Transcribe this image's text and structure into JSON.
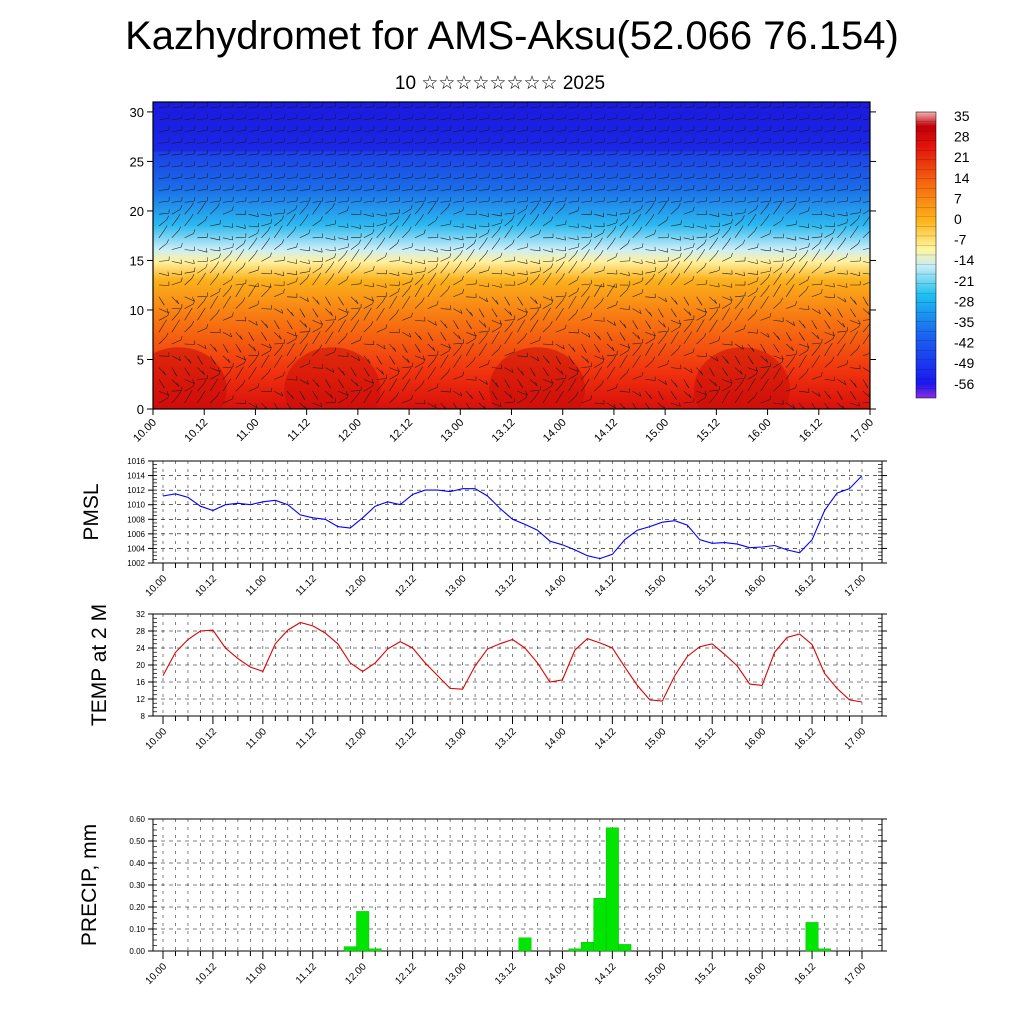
{
  "title": "Kazhydromet for AMS-Aksu(52.066 76.154)",
  "subtitle": "10 ☆☆☆☆☆☆☆☆ 2025",
  "time_ticks": [
    "10.00",
    "10.12",
    "11.00",
    "11.12",
    "12.00",
    "12.12",
    "13.00",
    "13.12",
    "14.00",
    "14.12",
    "15.00",
    "15.12",
    "16.00",
    "16.12",
    "17.00"
  ],
  "chart_data": [
    {
      "type": "heatmap",
      "name": "temperature_cross_section",
      "x_ticks": [
        "10.00",
        "10.12",
        "11.00",
        "11.12",
        "12.00",
        "12.12",
        "13.00",
        "13.12",
        "14.00",
        "14.12",
        "15.00",
        "15.12",
        "16.00",
        "16.12",
        "17.00"
      ],
      "y_ticks": [
        "0",
        "5",
        "10",
        "15",
        "20",
        "25",
        "30"
      ],
      "ylim": [
        0,
        31
      ],
      "colorbar_labels": [
        "35",
        "28",
        "21",
        "14",
        "7",
        "0",
        "-7",
        "-14",
        "-21",
        "-28",
        "-35",
        "-42",
        "-49",
        "-56"
      ],
      "colorbar_range": [
        -63,
        42
      ],
      "colors": [
        "#6a00d8",
        "#1420f0",
        "#0a6cf0",
        "#19c2f0",
        "#a8e6f5",
        "#fff7a0",
        "#fcb01c",
        "#f76d0e",
        "#e8200c",
        "#c4000a",
        "#f2a0a0"
      ],
      "overlay": "wind barbs"
    },
    {
      "type": "line",
      "name": "PMSL",
      "ylabel": "PMSL",
      "ylim": [
        1002,
        1016
      ],
      "y_ticks": [
        "1016",
        "1014",
        "1012",
        "1010",
        "1008",
        "1006",
        "1004",
        "1002"
      ],
      "x_ticks": [
        "10.00",
        "10.12",
        "11.00",
        "11.12",
        "12.00",
        "12.12",
        "13.00",
        "13.12",
        "14.00",
        "14.12",
        "15.00",
        "15.12",
        "16.00",
        "16.12",
        "17.00"
      ],
      "color": "#0000ff",
      "values": [
        1011.2,
        1011.5,
        1011.0,
        1009.8,
        1009.2,
        1010.0,
        1010.2,
        1010.0,
        1010.4,
        1010.6,
        1010.0,
        1008.6,
        1008.2,
        1008.0,
        1007.0,
        1006.8,
        1008.2,
        1009.8,
        1010.4,
        1010.0,
        1011.4,
        1012.0,
        1012.0,
        1011.8,
        1012.2,
        1012.2,
        1011.2,
        1009.5,
        1008.0,
        1007.3,
        1006.5,
        1005.0,
        1004.5,
        1003.8,
        1003.0,
        1002.6,
        1003.2,
        1005.2,
        1006.5,
        1007.0,
        1007.6,
        1007.8,
        1007.2,
        1005.2,
        1004.7,
        1004.8,
        1004.6,
        1004.1,
        1004.2,
        1004.4,
        1003.8,
        1003.4,
        1005.2,
        1009.2,
        1011.6,
        1012.2,
        1014.0
      ],
      "grid": true
    },
    {
      "type": "line",
      "name": "TEMP at 2 M",
      "ylabel": "TEMP at 2 M",
      "ylim": [
        8,
        32
      ],
      "y_ticks": [
        "32",
        "28",
        "24",
        "20",
        "16",
        "12",
        "8"
      ],
      "x_ticks": [
        "10.00",
        "10.12",
        "11.00",
        "11.12",
        "12.00",
        "12.12",
        "13.00",
        "13.12",
        "14.00",
        "14.12",
        "15.00",
        "15.12",
        "16.00",
        "16.12",
        "17.00"
      ],
      "color": "#dd0000",
      "values": [
        17.5,
        23.0,
        26.0,
        28.0,
        28.2,
        24.0,
        21.5,
        19.5,
        18.5,
        25.0,
        28.2,
        30.0,
        29.2,
        27.5,
        25.0,
        20.5,
        18.5,
        20.5,
        23.8,
        25.5,
        24.0,
        20.5,
        17.5,
        14.5,
        14.3,
        19.8,
        23.8,
        25.0,
        26.0,
        24.0,
        20.5,
        16.0,
        16.5,
        23.5,
        26.2,
        25.2,
        24.0,
        19.5,
        15.2,
        11.8,
        11.5,
        17.5,
        22.0,
        24.3,
        25.0,
        22.5,
        19.8,
        15.5,
        15.2,
        23.0,
        26.5,
        27.3,
        24.8,
        18.0,
        14.5,
        11.8,
        11.3
      ],
      "grid": true
    },
    {
      "type": "bar",
      "name": "PRECIP",
      "ylabel": "PRECIP, mm",
      "ylim": [
        0,
        0.6
      ],
      "y_ticks": [
        "0.60",
        "0.50",
        "0.40",
        "0.30",
        "0.20",
        "0.10",
        "0.00"
      ],
      "x_ticks": [
        "10.00",
        "10.12",
        "11.00",
        "11.12",
        "12.00",
        "12.12",
        "13.00",
        "13.12",
        "14.00",
        "14.12",
        "15.00",
        "15.12",
        "16.00",
        "16.12",
        "17.00"
      ],
      "color": "#00e600",
      "values": [
        0,
        0,
        0,
        0,
        0,
        0,
        0,
        0,
        0,
        0,
        0,
        0,
        0,
        0,
        0,
        0.02,
        0.18,
        0.01,
        0,
        0,
        0,
        0,
        0,
        0,
        0,
        0,
        0,
        0,
        0,
        0.06,
        0,
        0,
        0,
        0.01,
        0.04,
        0.24,
        0.56,
        0.03,
        0,
        0,
        0,
        0,
        0,
        0,
        0,
        0,
        0,
        0,
        0,
        0,
        0,
        0,
        0.13,
        0.01,
        0,
        0,
        0
      ],
      "grid": true
    }
  ]
}
